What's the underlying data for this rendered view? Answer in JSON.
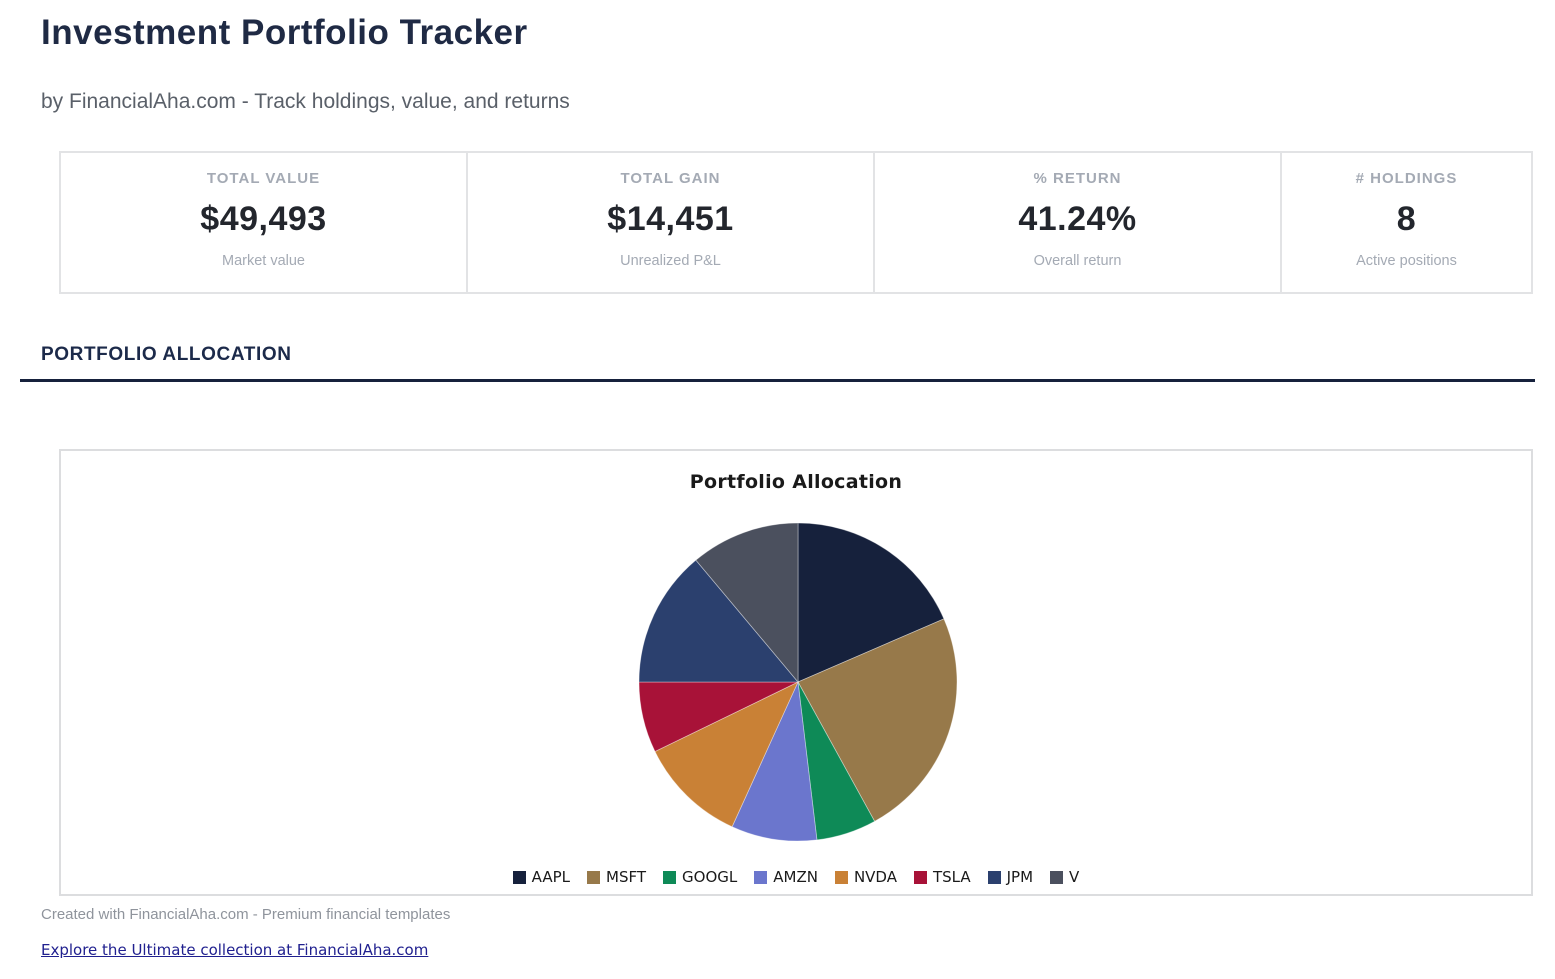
{
  "page": {
    "title": "Investment Portfolio Tracker",
    "subtitle": "by FinancialAha.com - Track holdings, value, and returns"
  },
  "stats": {
    "cards": [
      {
        "label": "TOTAL VALUE",
        "value": "$49,493",
        "sub": "Market value"
      },
      {
        "label": "TOTAL GAIN",
        "value": "$14,451",
        "sub": "Unrealized P&L"
      },
      {
        "label": "% RETURN",
        "value": "41.24%",
        "sub": "Overall return"
      },
      {
        "label": "# HOLDINGS",
        "value": "8",
        "sub": "Active positions"
      }
    ]
  },
  "section": {
    "heading": "PORTFOLIO ALLOCATION"
  },
  "chart_data": {
    "type": "pie",
    "title": "Portfolio Allocation",
    "labels": [
      "AAPL",
      "MSFT",
      "GOOGL",
      "AMZN",
      "NVDA",
      "TSLA",
      "JPM",
      "V"
    ],
    "values_pct": [
      18.5,
      23.5,
      6.1,
      8.7,
      11.0,
      7.2,
      13.9,
      11.1
    ],
    "colors": [
      "#16213C",
      "#97794A",
      "#0E8A57",
      "#6B76CD",
      "#C98136",
      "#A81238",
      "#2B406E",
      "#4B505E"
    ],
    "start_angle": "12 o'clock",
    "direction": "clockwise",
    "legend_position": "bottom",
    "data_labels": false
  },
  "footer": {
    "created": "Created with FinancialAha.com - Premium financial templates",
    "link": "Explore the Ultimate collection at FinancialAha.com"
  },
  "theme": {
    "accent_navy": "#16213C",
    "heading_navy": "#1C2A4A",
    "muted_gray": "#A4AAB4",
    "link_blue": "#20208F",
    "card_border": "#DCDDDF"
  }
}
